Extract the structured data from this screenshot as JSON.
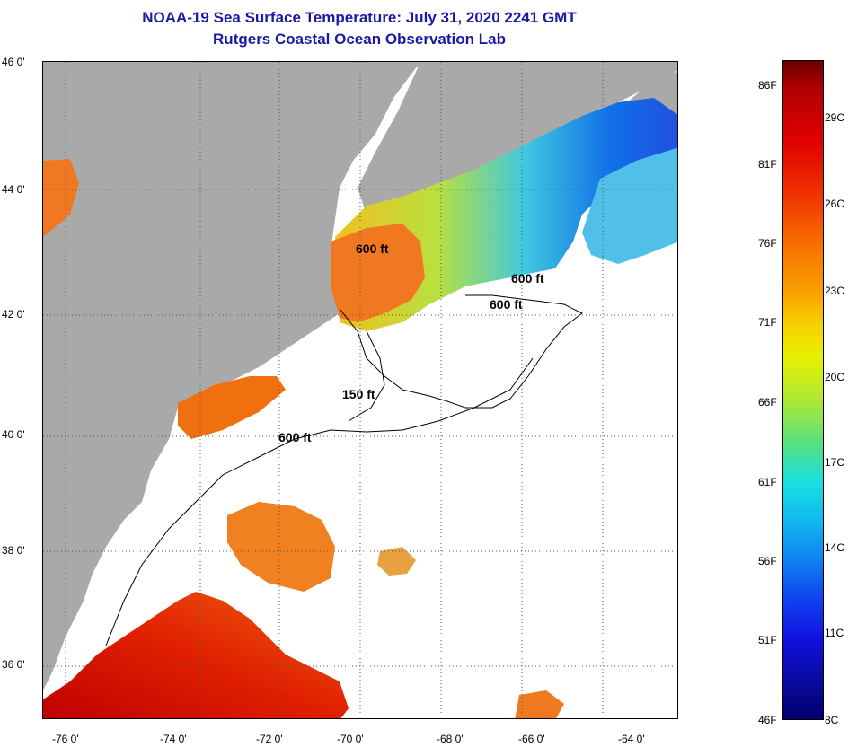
{
  "title_line1": "NOAA-19 Sea Surface Temperature:  July 31, 2020 2241 GMT",
  "title_line2": "Rutgers Coastal Ocean Observation Lab",
  "lat_labels": [
    "46 0'",
    "44 0'",
    "42 0'",
    "40 0'",
    "38 0'",
    "36 0'"
  ],
  "lon_labels": [
    "-76 0'",
    "-74 0'",
    "-72 0'",
    "-70 0'",
    "-68 0'",
    "-66 0'",
    "-64 0'"
  ],
  "isobath_labels": [
    "600 ft",
    "600 ft",
    "600 ft",
    "150 ft",
    "600 ft"
  ],
  "colorbar": {
    "fahrenheit": [
      "86F",
      "81F",
      "76F",
      "71F",
      "66F",
      "61F",
      "56F",
      "51F",
      "46F"
    ],
    "celsius": [
      "29C",
      "26C",
      "23C",
      "20C",
      "17C",
      "14C",
      "11C",
      "8C"
    ]
  },
  "colors": {
    "land": "#a9a9a9",
    "title": "#1a1aa6",
    "cloud": "#ffffff"
  }
}
